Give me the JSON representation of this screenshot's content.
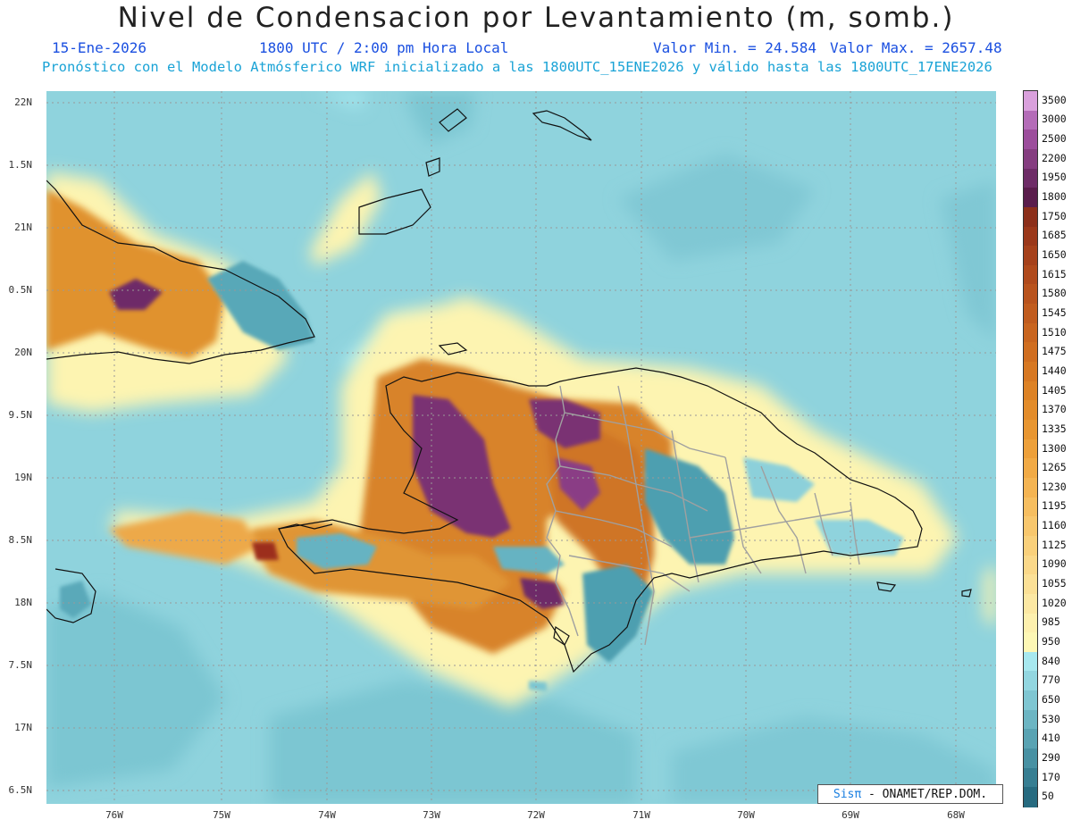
{
  "title": "Nivel de Condensacion por Levantamiento (m, somb.)",
  "date": "15-Ene-2026",
  "time": "1800 UTC / 2:00 pm Hora Local",
  "min_label": "Valor Min. = 24.584",
  "max_label": "Valor Max. = 2657.48",
  "model_line": "Pronóstico con el Modelo Atmósferico WRF inicializado a las 1800UTC_15ENE2026 y válido hasta las  1800UTC_17ENE2026",
  "credit_sis": "Sisπ",
  "credit_rest": " -  ONAMET/REP.DOM.",
  "lat_labels": [
    "22N",
    "1.5N",
    "21N",
    "0.5N",
    "20N",
    "9.5N",
    "19N",
    "8.5N",
    "18N",
    "7.5N",
    "17N",
    "6.5N"
  ],
  "lon_labels": [
    "76W",
    "75W",
    "74W",
    "73W",
    "72W",
    "71W",
    "70W",
    "69W",
    "68W"
  ],
  "colorbar": {
    "labels": [
      "3500",
      "3000",
      "2500",
      "2200",
      "1950",
      "1800",
      "1750",
      "1685",
      "1650",
      "1615",
      "1580",
      "1545",
      "1510",
      "1475",
      "1440",
      "1405",
      "1370",
      "1335",
      "1300",
      "1265",
      "1230",
      "1195",
      "1160",
      "1125",
      "1090",
      "1055",
      "1020",
      "985",
      "950",
      "840",
      "770",
      "650",
      "530",
      "410",
      "290",
      "170",
      "50"
    ],
    "colors": [
      "#d9a0dc",
      "#b46cb8",
      "#9c4d9c",
      "#853d80",
      "#6e2c67",
      "#5a1d4c",
      "#8c2f1a",
      "#9b381a",
      "#a6411b",
      "#b04a1c",
      "#b9531d",
      "#c15c1e",
      "#c9651f",
      "#d06e20",
      "#d77822",
      "#dd8225",
      "#e38c2a",
      "#e89631",
      "#eda03a",
      "#f1aa45",
      "#f4b452",
      "#f6be60",
      "#f8c76d",
      "#f9d07b",
      "#fad889",
      "#fbe096",
      "#fce8a3",
      "#fdf0ae",
      "#fdf7b5",
      "#a7e8ef",
      "#92d6e0",
      "#7fc6d2",
      "#6cb5c3",
      "#59a3b3",
      "#4891a3",
      "#377e92",
      "#276b80"
    ]
  }
}
